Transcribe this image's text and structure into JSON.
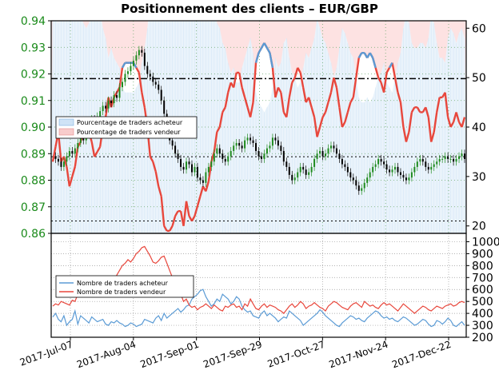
{
  "chart_data": [
    {
      "type": "line",
      "title": "Positionnement des clients – EUR/GBP",
      "price_axis": {
        "ticks": [
          0.86,
          0.87,
          0.88,
          0.89,
          0.9,
          0.91,
          0.92,
          0.93,
          0.94
        ],
        "ylim": [
          0.86,
          0.94
        ]
      },
      "percent_axis": {
        "ticks": [
          20,
          30,
          40,
          50,
          60
        ],
        "ylim": [
          18.5,
          61.5
        ]
      },
      "x_labels": [
        "2017-Jul-07",
        "2017-Aug-04",
        "2017-Sep-01",
        "2017-Sep-29",
        "2017-Oct-27",
        "2017-Nov-24",
        "2017-Dec-22"
      ],
      "legend": [
        "Pourcentage de traders acheteur",
        "Pourcentage de traders vendeur"
      ],
      "colors": {
        "buyers": "#5b9bd5",
        "sellers": "#e8473c",
        "buy_area": "#eaf3fb",
        "sell_area": "#fde2e2",
        "price_up": "#1e8a1e",
        "price_down": "#000000"
      },
      "reference_levels": {
        "dashdot": 49.8,
        "dotted": [
          34,
          21
        ]
      },
      "series": [
        {
          "name": "Pourcentage de traders acheteur",
          "values": [
            67,
            64,
            61,
            67,
            66,
            68,
            72,
            70,
            68,
            64,
            63,
            61,
            60,
            61,
            63,
            66,
            65,
            64,
            60,
            58,
            54,
            56,
            54,
            53,
            52,
            48,
            47,
            47,
            47,
            47,
            48,
            49,
            53,
            56,
            60,
            66,
            67,
            69,
            72,
            74,
            80,
            81,
            81,
            80,
            78,
            77,
            77,
            80,
            75,
            78,
            79,
            78,
            76,
            74,
            72,
            73,
            71,
            67,
            65,
            61,
            60,
            57,
            56,
            53,
            51,
            52,
            49,
            49,
            52,
            54,
            56,
            58,
            55,
            47,
            45,
            44,
            43,
            44,
            45,
            48,
            54,
            52,
            53,
            57,
            58,
            54,
            51,
            50,
            48,
            49,
            52,
            55,
            54,
            56,
            58,
            62,
            60,
            58,
            57,
            55,
            53,
            50,
            52,
            56,
            60,
            59,
            57,
            55,
            54,
            50,
            46,
            45,
            45,
            46,
            45,
            46,
            48,
            50,
            51,
            53,
            49,
            48,
            47,
            50,
            53,
            55,
            60,
            63,
            61,
            57,
            56,
            56,
            57,
            57,
            56,
            58,
            63,
            61,
            57,
            54,
            54,
            53,
            58,
            60,
            59,
            57,
            59,
            60,
            58
          ]
        },
        {
          "name": "Pourcentage de traders vendeur",
          "values": [
            33,
            36,
            39,
            33,
            34,
            32,
            28,
            30,
            32,
            36,
            37,
            39,
            40,
            39,
            37,
            34,
            35,
            36,
            40,
            42,
            46,
            44,
            46,
            47,
            48,
            52,
            53,
            53,
            53,
            53,
            52,
            51,
            47,
            44,
            40,
            34,
            33,
            31,
            28,
            26,
            20,
            19,
            19,
            20,
            22,
            23,
            23,
            20,
            25,
            22,
            21,
            22,
            24,
            26,
            28,
            27,
            29,
            33,
            35,
            39,
            40,
            43,
            44,
            47,
            49,
            48,
            51,
            51,
            48,
            46,
            44,
            42,
            45,
            53,
            55,
            56,
            57,
            56,
            55,
            52,
            46,
            48,
            47,
            43,
            42,
            46,
            49,
            50,
            52,
            51,
            48,
            45,
            46,
            44,
            42,
            38,
            40,
            42,
            43,
            45,
            47,
            50,
            48,
            44,
            40,
            41,
            43,
            45,
            46,
            50,
            54,
            55,
            55,
            54,
            55,
            54,
            52,
            50,
            49,
            47,
            51,
            52,
            53,
            50,
            47,
            45,
            40,
            37,
            39,
            43,
            44,
            44,
            43,
            43,
            44,
            42,
            37,
            39,
            43,
            46,
            46,
            47,
            42,
            40,
            41,
            43,
            41,
            40,
            42
          ]
        },
        {
          "name": "EUR/GBP",
          "values": [
            0.889,
            0.888,
            0.887,
            0.885,
            0.887,
            0.889,
            0.891,
            0.89,
            0.892,
            0.894,
            0.896,
            0.895,
            0.898,
            0.901,
            0.903,
            0.901,
            0.904,
            0.906,
            0.908,
            0.907,
            0.91,
            0.909,
            0.912,
            0.911,
            0.915,
            0.917,
            0.92,
            0.921,
            0.923,
            0.925,
            0.927,
            0.929,
            0.928,
            0.923,
            0.92,
            0.919,
            0.917,
            0.916,
            0.914,
            0.91,
            0.905,
            0.9,
            0.895,
            0.893,
            0.89,
            0.888,
            0.885,
            0.884,
            0.887,
            0.886,
            0.883,
            0.885,
            0.881,
            0.88,
            0.879,
            0.883,
            0.885,
            0.887,
            0.89,
            0.892,
            0.89,
            0.888,
            0.887,
            0.889,
            0.891,
            0.893,
            0.894,
            0.893,
            0.892,
            0.895,
            0.896,
            0.895,
            0.894,
            0.891,
            0.889,
            0.888,
            0.89,
            0.892,
            0.893,
            0.896,
            0.895,
            0.893,
            0.891,
            0.887,
            0.885,
            0.882,
            0.88,
            0.881,
            0.883,
            0.885,
            0.884,
            0.882,
            0.883,
            0.885,
            0.888,
            0.89,
            0.891,
            0.889,
            0.89,
            0.892,
            0.893,
            0.892,
            0.89,
            0.888,
            0.886,
            0.885,
            0.883,
            0.881,
            0.88,
            0.878,
            0.876,
            0.877,
            0.879,
            0.881,
            0.883,
            0.885,
            0.886,
            0.888,
            0.887,
            0.886,
            0.884,
            0.883,
            0.884,
            0.885,
            0.883,
            0.882,
            0.881,
            0.88,
            0.881,
            0.883,
            0.885,
            0.887,
            0.888,
            0.887,
            0.885,
            0.884,
            0.885,
            0.886,
            0.887,
            0.888,
            0.888,
            0.889,
            0.888,
            0.888,
            0.887,
            0.888,
            0.889,
            0.89,
            0.888
          ]
        }
      ]
    },
    {
      "type": "line",
      "yticks": [
        200,
        300,
        400,
        500,
        600,
        700,
        800,
        900,
        1000
      ],
      "ylim": [
        200,
        1070
      ],
      "legend": [
        "Nombre de traders acheteur",
        "Nombre de traders vendeur"
      ],
      "series": [
        {
          "name": "Nombre de traders acheteur",
          "values": [
            370,
            400,
            350,
            330,
            380,
            300,
            330,
            350,
            420,
            310,
            380,
            360,
            340,
            320,
            370,
            350,
            330,
            340,
            350,
            310,
            300,
            330,
            320,
            340,
            320,
            310,
            290,
            300,
            320,
            310,
            290,
            300,
            310,
            350,
            340,
            330,
            320,
            360,
            380,
            340,
            400,
            360,
            380,
            400,
            420,
            440,
            410,
            430,
            460,
            470,
            520,
            540,
            560,
            590,
            600,
            540,
            500,
            460,
            480,
            520,
            500,
            560,
            540,
            520,
            480,
            500,
            540,
            520,
            460,
            430,
            410,
            420,
            380,
            370,
            360,
            400,
            420,
            380,
            400,
            380,
            360,
            330,
            350,
            370,
            360,
            420,
            400,
            380,
            360,
            340,
            300,
            320,
            340,
            360,
            380,
            400,
            430,
            410,
            380,
            360,
            340,
            320,
            300,
            290,
            320,
            340,
            360,
            380,
            370,
            350,
            360,
            340,
            330,
            360,
            380,
            400,
            420,
            410,
            380,
            360,
            370,
            350,
            360,
            340,
            330,
            350,
            370,
            360,
            340,
            320,
            300,
            310,
            330,
            350,
            340,
            310,
            290,
            300,
            340,
            330,
            310,
            330,
            360,
            340,
            300,
            290,
            310,
            330,
            300
          ]
        },
        {
          "name": "Nombre de traders vendeur",
          "values": [
            460,
            480,
            470,
            500,
            490,
            480,
            470,
            510,
            500,
            560,
            590,
            600,
            620,
            640,
            610,
            590,
            570,
            560,
            590,
            600,
            630,
            650,
            680,
            720,
            760,
            800,
            820,
            850,
            830,
            860,
            900,
            920,
            950,
            960,
            920,
            880,
            830,
            820,
            840,
            870,
            880,
            820,
            760,
            700,
            650,
            610,
            560,
            500,
            520,
            470,
            450,
            460,
            430,
            450,
            460,
            480,
            460,
            440,
            470,
            450,
            430,
            420,
            460,
            450,
            470,
            480,
            450,
            460,
            430,
            480,
            460,
            520,
            480,
            440,
            430,
            460,
            480,
            450,
            470,
            460,
            450,
            430,
            420,
            400,
            430,
            460,
            480,
            450,
            470,
            500,
            480,
            440,
            460,
            470,
            490,
            470,
            450,
            440,
            420,
            460,
            480,
            500,
            490,
            470,
            450,
            440,
            430,
            460,
            480,
            490,
            470,
            450,
            500,
            480,
            460,
            470,
            450,
            440,
            470,
            490,
            470,
            480,
            460,
            440,
            420,
            450,
            480,
            460,
            440,
            420,
            400,
            420,
            440,
            460,
            450,
            430,
            420,
            440,
            460,
            450,
            440,
            460,
            470,
            480,
            460,
            470,
            490,
            500,
            490
          ]
        }
      ]
    }
  ]
}
